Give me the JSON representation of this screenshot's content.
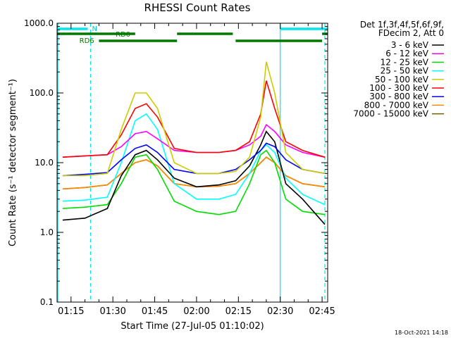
{
  "chart_data": {
    "type": "line",
    "title": "RHESSI Count Rates",
    "xlabel": "Start Time (27-Jul-05 01:10:02)",
    "ylabel": "Count Rate (s⁻¹ detector segment⁻¹)",
    "y_scale": "log",
    "ylim": [
      0.1,
      1000
    ],
    "xlim": [
      "01:10",
      "02:47"
    ],
    "x_ticks": [
      "01:15",
      "01:30",
      "01:45",
      "02:00",
      "02:15",
      "02:30",
      "02:45"
    ],
    "y_ticks": [
      "0.1",
      "1.0",
      "10.0",
      "100.0",
      "1000.0"
    ],
    "legend_placement": "right",
    "legend_header": [
      "Det 1f,3f,4f,5f,6f,9f,",
      "FDecim 2, Att 0"
    ],
    "footer_date": "18-Oct-2021 14:18",
    "annotations": [
      "N",
      "RD0",
      "RD6"
    ],
    "x": [
      "01:12",
      "01:20",
      "01:28",
      "01:33",
      "01:38",
      "01:42",
      "01:46",
      "01:52",
      "02:00",
      "02:08",
      "02:14",
      "02:19",
      "02:23",
      "02:25",
      "02:28",
      "02:32",
      "02:38",
      "02:46"
    ],
    "series": [
      {
        "name": "3 - 6 keV",
        "color": "#000000",
        "values": [
          1.5,
          1.6,
          2.2,
          6.5,
          13,
          15,
          11,
          6,
          4.5,
          4.8,
          5.5,
          9,
          18,
          28,
          20,
          5,
          3,
          1.3
        ]
      },
      {
        "name": "6 - 12 keV",
        "color": "#ff00ff",
        "values": [
          12,
          12.5,
          13,
          17,
          26,
          28,
          22,
          15,
          14,
          14,
          15,
          18,
          24,
          35,
          28,
          18,
          14,
          12
        ]
      },
      {
        "name": "12 - 25 keV",
        "color": "#00dd00",
        "values": [
          2.2,
          2.3,
          2.5,
          5,
          12,
          13,
          8,
          2.8,
          2,
          1.8,
          2,
          5,
          13,
          15,
          10,
          3,
          2,
          1.8
        ]
      },
      {
        "name": "25 - 50 keV",
        "color": "#00ffff",
        "values": [
          2.8,
          2.9,
          3.2,
          10,
          40,
          50,
          30,
          5,
          3,
          3,
          3.5,
          7,
          15,
          18,
          14,
          6,
          3.5,
          2.5
        ]
      },
      {
        "name": "50 - 100 keV",
        "color": "#cccc00",
        "values": [
          6.5,
          6.5,
          7,
          30,
          100,
          100,
          60,
          10,
          7,
          7,
          7.5,
          12,
          45,
          280,
          100,
          14,
          8,
          7
        ]
      },
      {
        "name": "100 - 300 keV",
        "color": "#ff0000",
        "values": [
          12,
          12.5,
          13,
          25,
          60,
          70,
          45,
          16,
          14,
          14,
          15,
          20,
          50,
          150,
          60,
          20,
          15,
          12
        ]
      },
      {
        "name": "300 - 800 keV",
        "color": "#0000ff",
        "values": [
          6.5,
          6.8,
          7.2,
          11,
          16,
          18,
          14,
          8,
          7,
          7,
          8,
          11,
          15,
          19,
          17,
          11,
          8,
          7
        ]
      },
      {
        "name": "800 - 7000 keV",
        "color": "#ff8800",
        "values": [
          4.2,
          4.4,
          4.8,
          7,
          10,
          11,
          9,
          5,
          4.5,
          4.6,
          5,
          7,
          10,
          12,
          10,
          6.5,
          5,
          4.5
        ]
      },
      {
        "name": "7000 - 15000 keV",
        "color": "#666600",
        "values": [
          4.2,
          4.4,
          4.8,
          7,
          10,
          11,
          9,
          5,
          4.5,
          4.6,
          5,
          7,
          10,
          12,
          10,
          6.5,
          5,
          4.5
        ]
      }
    ],
    "state_bars": {
      "N": [
        [
          "01:10",
          "01:21"
        ],
        [
          "02:30",
          "02:47"
        ]
      ],
      "RD0": [
        [
          "01:10",
          "01:38"
        ],
        [
          "01:53",
          "02:13"
        ],
        [
          "02:45",
          "02:47"
        ]
      ],
      "RD6": [
        [
          "01:25",
          "01:53"
        ],
        [
          "02:14",
          "02:45"
        ]
      ]
    },
    "vertical_markers": {
      "solid": [
        "01:10",
        "02:30"
      ],
      "dashed": [
        "01:22",
        "02:46"
      ]
    }
  }
}
